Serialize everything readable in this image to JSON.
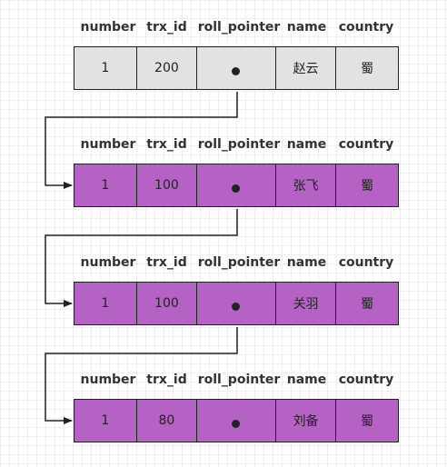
{
  "headers": [
    "number",
    "trx_id",
    "roll_pointer",
    "name",
    "country"
  ],
  "records": [
    {
      "number": "1",
      "trx_id": "200",
      "name": "赵云",
      "country": "蜀",
      "color": "#e2e2e2"
    },
    {
      "number": "1",
      "trx_id": "100",
      "name": "张飞",
      "country": "蜀",
      "color": "#b462c4"
    },
    {
      "number": "1",
      "trx_id": "100",
      "name": "关羽",
      "country": "蜀",
      "color": "#b462c4"
    },
    {
      "number": "1",
      "trx_id": "80",
      "name": "刘备",
      "country": "蜀",
      "color": "#b462c4"
    }
  ],
  "colors": {
    "line": "#222222",
    "current": "#e2e2e2",
    "history": "#b462c4"
  }
}
